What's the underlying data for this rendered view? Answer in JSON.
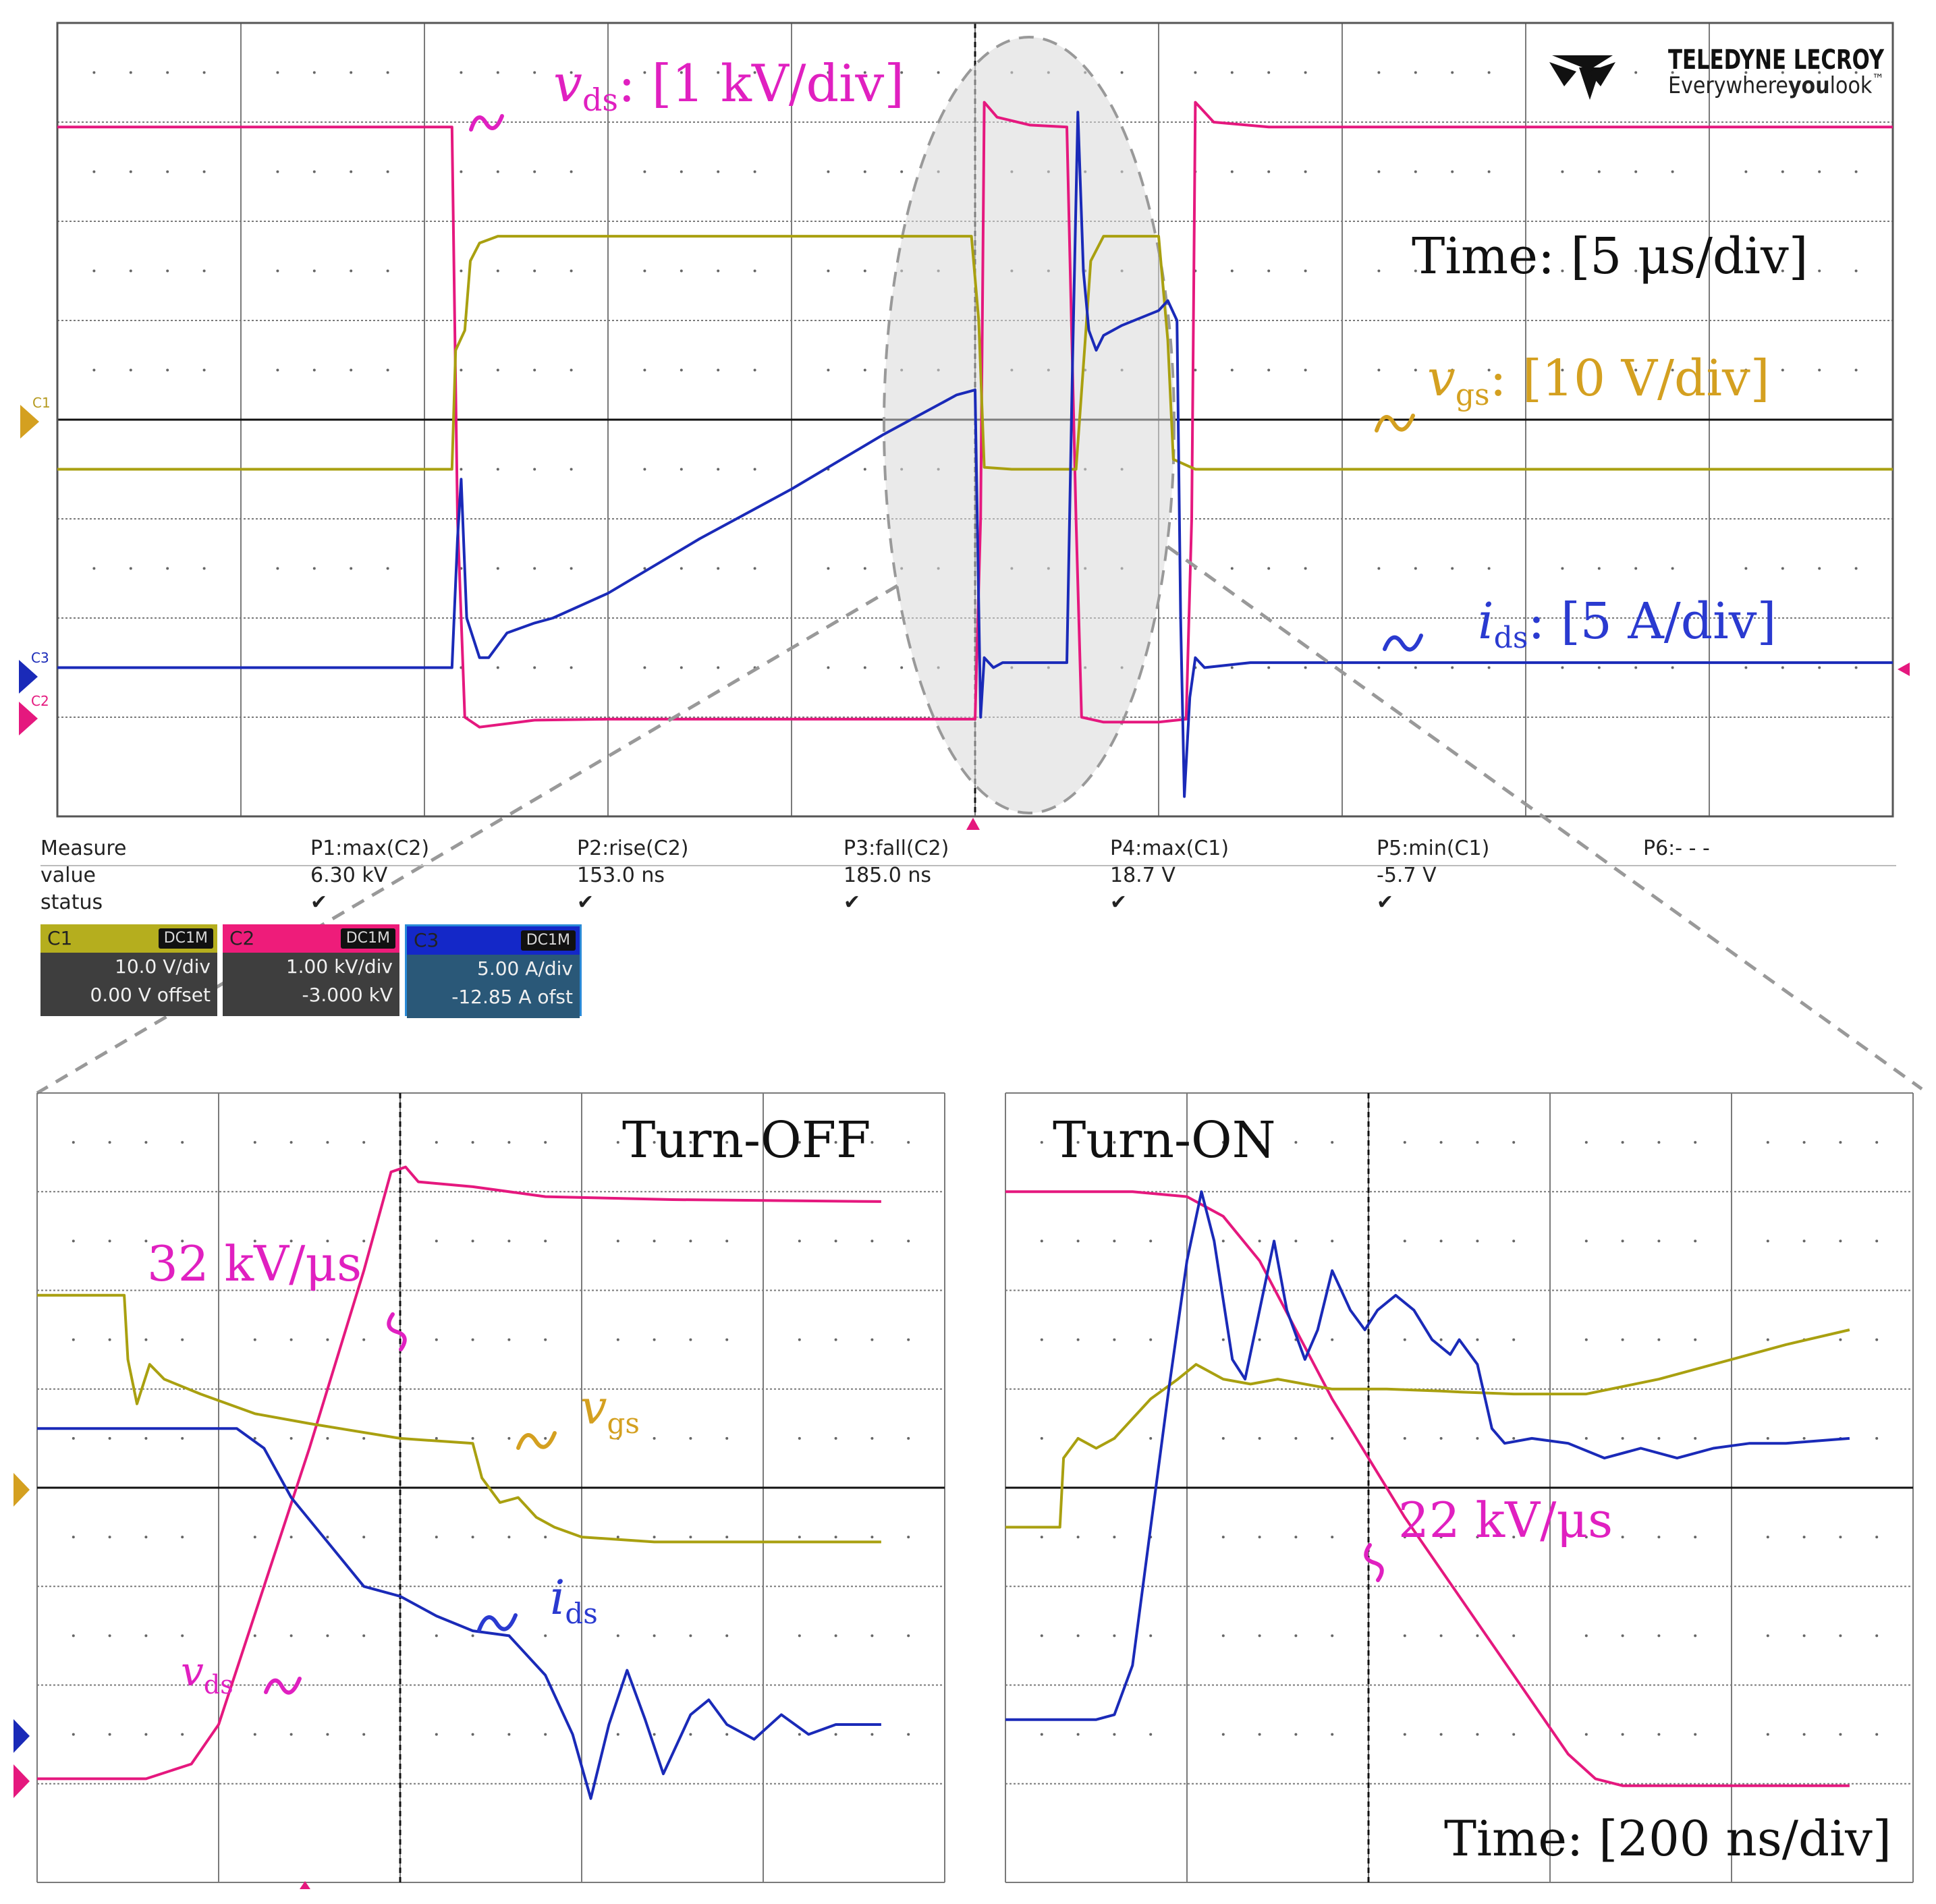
{
  "logo": {
    "name": "TELEDYNE LECROY",
    "tagline_prefix": "Everywhere",
    "tagline_bold": "you",
    "tagline_suffix": "look",
    "trademark": "™"
  },
  "top_scope": {
    "labels": {
      "vds_sym": "v",
      "vds_sub": "ds",
      "vds_scale": ": [1 kV/div]",
      "time": "Time: [5 μs/div]",
      "vgs_sym": "v",
      "vgs_sub": "gs",
      "vgs_scale": ": [10 V/div]",
      "ids_sym": "i",
      "ids_sub": "ds",
      "ids_scale": ": [5 A/div]"
    },
    "markers": {
      "c1": "C1",
      "c3": "C3",
      "c2": "C2"
    }
  },
  "measure": {
    "columns": [
      {
        "header": "Measure",
        "value": "value",
        "status": "status",
        "check": false
      },
      {
        "header": "P1:max(C2)",
        "value": "6.30 kV",
        "status": "",
        "check": true
      },
      {
        "header": "P2:rise(C2)",
        "value": "153.0 ns",
        "status": "",
        "check": true
      },
      {
        "header": "P3:fall(C2)",
        "value": "185.0 ns",
        "status": "",
        "check": true
      },
      {
        "header": "P4:max(C1)",
        "value": "18.7 V",
        "status": "",
        "check": true
      },
      {
        "header": "P5:min(C1)",
        "value": "-5.7 V",
        "status": "",
        "check": true
      },
      {
        "header": "P6:- - -",
        "value": "",
        "status": "",
        "check": false
      }
    ],
    "check_glyph": "✔"
  },
  "channels": [
    {
      "name": "C1",
      "coupling": "DC1M",
      "scale": "10.0 V/div",
      "offset": "0.00 V offset",
      "color": "#b5ae1e"
    },
    {
      "name": "C2",
      "coupling": "DC1M",
      "scale": "1.00 kV/div",
      "offset": "-3.000 kV",
      "color": "#ee1c7a"
    },
    {
      "name": "C3",
      "coupling": "DC1M",
      "scale": "5.00 A/div",
      "offset": "-12.85 A ofst",
      "color": "#1428c8"
    }
  ],
  "zoom_left": {
    "title": "Turn-OFF",
    "slope_label": "32 kV/μs",
    "vgs_sym": "v",
    "vgs_sub": "gs",
    "ids_sym": "i",
    "ids_sub": "ds",
    "vds_sym": "v",
    "vds_sub": "ds"
  },
  "zoom_right": {
    "title": "Turn-ON",
    "slope_label": "22 kV/μs",
    "time": "Time: [200 ns/div]"
  },
  "colors": {
    "vds": "#e5187e",
    "vgs": "#a9a010",
    "ids": "#1a2ab8",
    "vgs_label": "#d4a020",
    "vds_label": "#e020c0",
    "ids_label": "#2a3ad0"
  },
  "chart_data": [
    {
      "type": "line",
      "title": "",
      "time_scale": "5 μs/div",
      "x_divisions": 10,
      "y_divisions": 8,
      "series": [
        {
          "name": "vds",
          "scale": "1 kV/div",
          "color": "#e5187e",
          "points": [
            [
              0,
              6.95
            ],
            [
              2.15,
              6.95
            ],
            [
              2.18,
              3.0
            ],
            [
              2.22,
              1.0
            ],
            [
              2.3,
              0.9
            ],
            [
              2.6,
              0.97
            ],
            [
              3.0,
              0.98
            ],
            [
              5.0,
              0.98
            ],
            [
              5.03,
              3.0
            ],
            [
              5.05,
              7.2
            ],
            [
              5.12,
              7.05
            ],
            [
              5.3,
              6.97
            ],
            [
              5.5,
              6.95
            ],
            [
              5.55,
              3.0
            ],
            [
              5.58,
              1.0
            ],
            [
              5.7,
              0.95
            ],
            [
              6.0,
              0.95
            ],
            [
              6.15,
              0.98
            ],
            [
              6.18,
              3.0
            ],
            [
              6.2,
              7.2
            ],
            [
              6.3,
              7.0
            ],
            [
              6.6,
              6.95
            ],
            [
              10,
              6.95
            ]
          ]
        },
        {
          "name": "vgs",
          "scale": "10 V/div",
          "color": "#a9a010",
          "points": [
            [
              0,
              3.5
            ],
            [
              2.15,
              3.5
            ],
            [
              2.17,
              4.7
            ],
            [
              2.22,
              4.9
            ],
            [
              2.25,
              5.6
            ],
            [
              2.3,
              5.78
            ],
            [
              2.4,
              5.85
            ],
            [
              2.6,
              5.85
            ],
            [
              4.98,
              5.85
            ],
            [
              5.02,
              5.0
            ],
            [
              5.05,
              3.52
            ],
            [
              5.2,
              3.5
            ],
            [
              5.55,
              3.5
            ],
            [
              5.6,
              4.8
            ],
            [
              5.63,
              5.6
            ],
            [
              5.7,
              5.85
            ],
            [
              6.0,
              5.85
            ],
            [
              6.05,
              4.8
            ],
            [
              6.08,
              3.6
            ],
            [
              6.2,
              3.5
            ],
            [
              10,
              3.5
            ]
          ]
        },
        {
          "name": "ids",
          "scale": "5 A/div",
          "color": "#1a2ab8",
          "points": [
            [
              0,
              1.5
            ],
            [
              2.15,
              1.5
            ],
            [
              2.18,
              2.8
            ],
            [
              2.2,
              3.4
            ],
            [
              2.23,
              2.0
            ],
            [
              2.3,
              1.6
            ],
            [
              2.35,
              1.6
            ],
            [
              2.45,
              1.85
            ],
            [
              2.6,
              1.95
            ],
            [
              2.7,
              2.0
            ],
            [
              3.0,
              2.25
            ],
            [
              3.5,
              2.8
            ],
            [
              4.0,
              3.3
            ],
            [
              4.5,
              3.85
            ],
            [
              4.9,
              4.25
            ],
            [
              5.0,
              4.3
            ],
            [
              5.03,
              1.0
            ],
            [
              5.05,
              1.6
            ],
            [
              5.1,
              1.5
            ],
            [
              5.15,
              1.55
            ],
            [
              5.5,
              1.55
            ],
            [
              5.53,
              4.5
            ],
            [
              5.56,
              7.1
            ],
            [
              5.59,
              5.5
            ],
            [
              5.62,
              4.9
            ],
            [
              5.66,
              4.7
            ],
            [
              5.7,
              4.85
            ],
            [
              5.8,
              4.95
            ],
            [
              6.0,
              5.1
            ],
            [
              6.05,
              5.2
            ],
            [
              6.1,
              5.0
            ],
            [
              6.12,
              2.0
            ],
            [
              6.14,
              0.2
            ],
            [
              6.17,
              1.2
            ],
            [
              6.2,
              1.6
            ],
            [
              6.25,
              1.5
            ],
            [
              6.5,
              1.55
            ],
            [
              7.5,
              1.55
            ],
            [
              10,
              1.55
            ]
          ]
        }
      ]
    },
    {
      "type": "line",
      "title": "Turn-OFF",
      "x_divisions": 5,
      "y_divisions": 8,
      "series": [
        {
          "name": "vds",
          "color": "#e5187e",
          "points": [
            [
              0,
              1.05
            ],
            [
              0.4,
              1.05
            ],
            [
              0.6,
              1.05
            ],
            [
              0.85,
              1.2
            ],
            [
              1.0,
              1.6
            ],
            [
              1.5,
              4.4
            ],
            [
              1.8,
              6.2
            ],
            [
              1.95,
              7.2
            ],
            [
              2.03,
              7.25
            ],
            [
              2.1,
              7.1
            ],
            [
              2.4,
              7.05
            ],
            [
              2.8,
              6.95
            ],
            [
              3.5,
              6.92
            ],
            [
              4.65,
              6.9
            ]
          ]
        },
        {
          "name": "vgs",
          "color": "#a9a010",
          "points": [
            [
              0,
              5.95
            ],
            [
              0.48,
              5.95
            ],
            [
              0.5,
              5.3
            ],
            [
              0.55,
              4.85
            ],
            [
              0.62,
              5.25
            ],
            [
              0.7,
              5.1
            ],
            [
              0.9,
              4.95
            ],
            [
              1.2,
              4.75
            ],
            [
              1.5,
              4.65
            ],
            [
              2.0,
              4.5
            ],
            [
              2.4,
              4.45
            ],
            [
              2.45,
              4.1
            ],
            [
              2.55,
              3.85
            ],
            [
              2.65,
              3.9
            ],
            [
              2.75,
              3.7
            ],
            [
              2.85,
              3.6
            ],
            [
              3.0,
              3.5
            ],
            [
              3.4,
              3.45
            ],
            [
              4.65,
              3.45
            ]
          ]
        },
        {
          "name": "ids",
          "color": "#1a2ab8",
          "points": [
            [
              0,
              4.6
            ],
            [
              0.6,
              4.6
            ],
            [
              1.1,
              4.6
            ],
            [
              1.25,
              4.4
            ],
            [
              1.4,
              3.9
            ],
            [
              1.6,
              3.45
            ],
            [
              1.8,
              3.0
            ],
            [
              2.0,
              2.9
            ],
            [
              2.2,
              2.7
            ],
            [
              2.4,
              2.55
            ],
            [
              2.6,
              2.5
            ],
            [
              2.8,
              2.1
            ],
            [
              2.95,
              1.5
            ],
            [
              3.05,
              0.85
            ],
            [
              3.15,
              1.6
            ],
            [
              3.25,
              2.15
            ],
            [
              3.35,
              1.65
            ],
            [
              3.45,
              1.1
            ],
            [
              3.6,
              1.7
            ],
            [
              3.7,
              1.85
            ],
            [
              3.8,
              1.6
            ],
            [
              3.95,
              1.45
            ],
            [
              4.1,
              1.7
            ],
            [
              4.25,
              1.5
            ],
            [
              4.4,
              1.6
            ],
            [
              4.65,
              1.6
            ]
          ]
        }
      ]
    },
    {
      "type": "line",
      "title": "Turn-ON",
      "time_scale": "200 ns/div",
      "x_divisions": 5,
      "y_divisions": 8,
      "series": [
        {
          "name": "vds",
          "color": "#e5187e",
          "points": [
            [
              0,
              7.0
            ],
            [
              0.7,
              7.0
            ],
            [
              1.0,
              6.95
            ],
            [
              1.2,
              6.75
            ],
            [
              1.4,
              6.3
            ],
            [
              1.6,
              5.6
            ],
            [
              1.8,
              4.9
            ],
            [
              2.0,
              4.3
            ],
            [
              2.2,
              3.7
            ],
            [
              2.5,
              2.9
            ],
            [
              2.8,
              2.1
            ],
            [
              3.1,
              1.3
            ],
            [
              3.25,
              1.05
            ],
            [
              3.4,
              0.98
            ],
            [
              4.65,
              0.98
            ]
          ]
        },
        {
          "name": "vgs",
          "color": "#a9a010",
          "points": [
            [
              0,
              3.6
            ],
            [
              0.3,
              3.6
            ],
            [
              0.32,
              4.3
            ],
            [
              0.4,
              4.5
            ],
            [
              0.5,
              4.4
            ],
            [
              0.6,
              4.5
            ],
            [
              0.8,
              4.9
            ],
            [
              0.95,
              5.1
            ],
            [
              1.05,
              5.25
            ],
            [
              1.2,
              5.1
            ],
            [
              1.35,
              5.05
            ],
            [
              1.5,
              5.1
            ],
            [
              1.8,
              5.0
            ],
            [
              2.1,
              5.0
            ],
            [
              2.4,
              4.98
            ],
            [
              2.5,
              4.97
            ],
            [
              2.8,
              4.95
            ],
            [
              3.2,
              4.95
            ],
            [
              3.6,
              5.1
            ],
            [
              4.0,
              5.3
            ],
            [
              4.3,
              5.45
            ],
            [
              4.65,
              5.6
            ]
          ]
        },
        {
          "name": "ids",
          "color": "#1a2ab8",
          "points": [
            [
              0,
              1.65
            ],
            [
              0.5,
              1.65
            ],
            [
              0.6,
              1.7
            ],
            [
              0.7,
              2.2
            ],
            [
              0.8,
              3.6
            ],
            [
              0.9,
              5.0
            ],
            [
              1.0,
              6.3
            ],
            [
              1.08,
              7.0
            ],
            [
              1.15,
              6.5
            ],
            [
              1.25,
              5.3
            ],
            [
              1.32,
              5.1
            ],
            [
              1.4,
              5.8
            ],
            [
              1.48,
              6.5
            ],
            [
              1.55,
              5.8
            ],
            [
              1.65,
              5.3
            ],
            [
              1.72,
              5.6
            ],
            [
              1.8,
              6.2
            ],
            [
              1.9,
              5.8
            ],
            [
              1.98,
              5.6
            ],
            [
              2.05,
              5.8
            ],
            [
              2.15,
              5.95
            ],
            [
              2.25,
              5.8
            ],
            [
              2.35,
              5.5
            ],
            [
              2.45,
              5.35
            ],
            [
              2.5,
              5.5
            ],
            [
              2.6,
              5.25
            ],
            [
              2.68,
              4.6
            ],
            [
              2.75,
              4.45
            ],
            [
              2.9,
              4.5
            ],
            [
              3.1,
              4.45
            ],
            [
              3.3,
              4.3
            ],
            [
              3.5,
              4.4
            ],
            [
              3.7,
              4.3
            ],
            [
              3.9,
              4.4
            ],
            [
              4.1,
              4.45
            ],
            [
              4.3,
              4.45
            ],
            [
              4.65,
              4.5
            ]
          ]
        }
      ]
    }
  ]
}
